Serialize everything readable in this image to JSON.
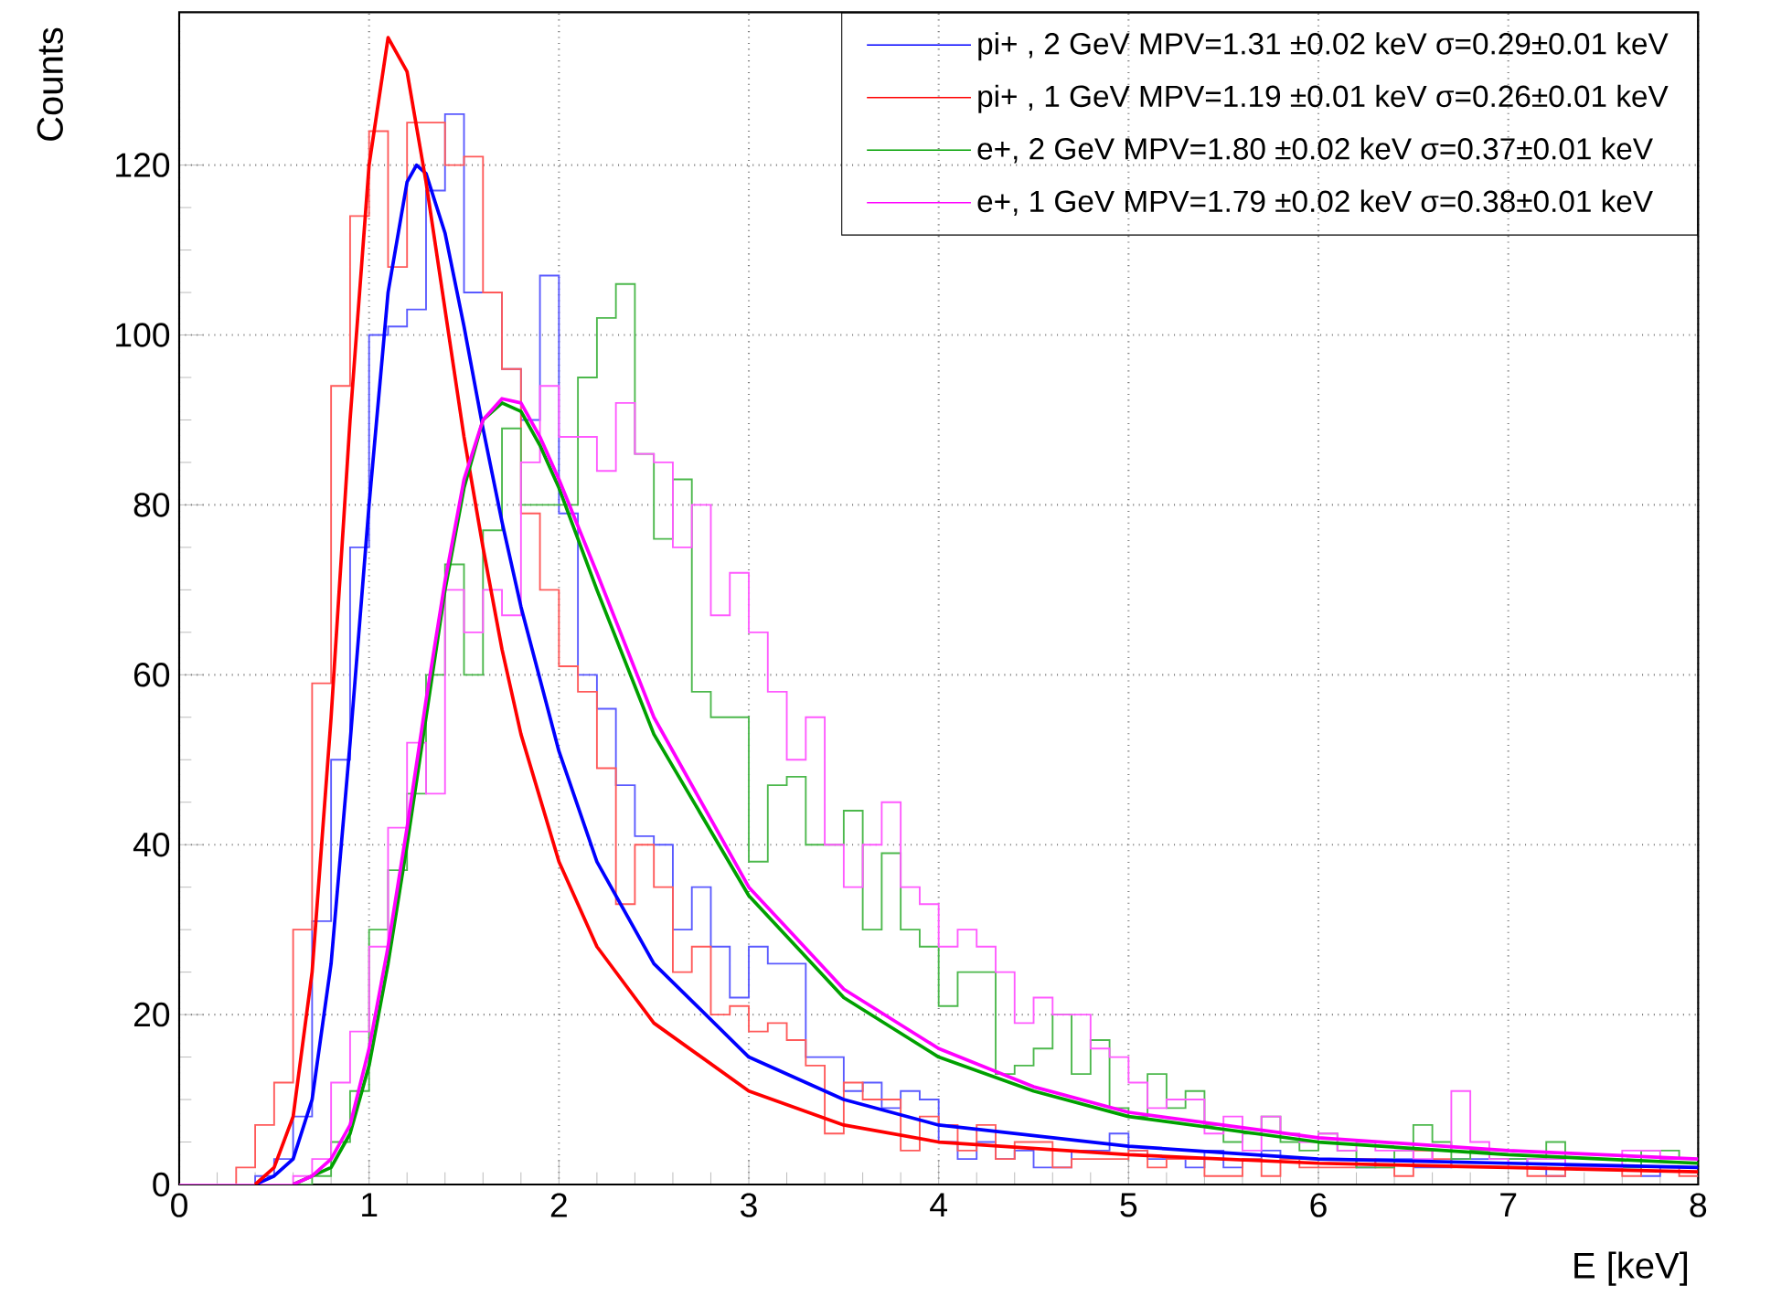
{
  "chart_data": {
    "type": "histogram",
    "xlabel": "E [keV]",
    "ylabel": "Counts",
    "xlim": [
      0,
      8
    ],
    "ylim": [
      0,
      138
    ],
    "xticks": [
      0,
      1,
      2,
      3,
      4,
      5,
      6,
      7,
      8
    ],
    "yticks": [
      0,
      20,
      40,
      60,
      80,
      100,
      120
    ],
    "grid": true,
    "legend": "top right",
    "bins": [
      0,
      0.1,
      0.2,
      0.3,
      0.4,
      0.5,
      0.6,
      0.7,
      0.8,
      0.9,
      1,
      1.1,
      1.2,
      1.3,
      1.4,
      1.5,
      1.6,
      1.7,
      1.8,
      1.9,
      2,
      2.1,
      2.2,
      2.3,
      2.4,
      2.5,
      2.6,
      2.7,
      2.8,
      2.9,
      3,
      3.1,
      3.2,
      3.3,
      3.4,
      3.5,
      3.6,
      3.7,
      3.8,
      3.9,
      4,
      4.1,
      4.2,
      4.3,
      4.4,
      4.5,
      4.6,
      4.7,
      4.8,
      4.9,
      5,
      5.1,
      5.2,
      5.3,
      5.4,
      5.5,
      5.6,
      5.7,
      5.8,
      5.9,
      6,
      6.1,
      6.2,
      6.3,
      6.4,
      6.5,
      6.6,
      6.7,
      6.8,
      6.9,
      7,
      7.1,
      7.2,
      7.3,
      7.4,
      7.5,
      7.6,
      7.7,
      7.8,
      7.9,
      8
    ],
    "series": [
      {
        "color": "#5a5aff",
        "values": [
          0,
          0,
          0,
          0,
          1,
          3,
          8,
          31,
          50,
          75,
          100,
          101,
          103,
          117,
          126,
          105,
          105,
          96,
          90,
          107,
          79,
          60,
          56,
          47,
          41,
          40,
          30,
          35,
          28,
          22,
          28,
          26,
          26,
          15,
          15,
          11,
          12,
          9,
          11,
          10,
          5,
          3,
          5,
          3,
          4,
          2,
          2,
          4,
          4,
          6,
          4,
          3,
          3,
          2,
          4,
          2,
          3,
          4,
          3,
          3,
          3,
          3,
          2,
          3,
          3,
          2,
          2,
          3,
          3,
          3,
          3,
          2,
          1,
          2,
          2,
          2,
          2,
          1,
          2,
          2
        ]
      },
      {
        "color": "#ff5a5a",
        "values": [
          0,
          0,
          0,
          2,
          7,
          12,
          30,
          59,
          94,
          114,
          124,
          108,
          125,
          125,
          120,
          121,
          105,
          96,
          79,
          70,
          61,
          58,
          49,
          33,
          40,
          35,
          25,
          28,
          20,
          21,
          18,
          19,
          17,
          14,
          6,
          12,
          10,
          10,
          4,
          8,
          7,
          4,
          7,
          3,
          5,
          5,
          2,
          3,
          3,
          3,
          4,
          2,
          3,
          3,
          1,
          1,
          3,
          1,
          3,
          2,
          2,
          2,
          3,
          2,
          1,
          4,
          3,
          2,
          2,
          2,
          2,
          1,
          1,
          2,
          2,
          2,
          1,
          2,
          2,
          1
        ]
      },
      {
        "color": "#4cb84c",
        "values": [
          0,
          0,
          0,
          0,
          0,
          0,
          0,
          1,
          5,
          11,
          30,
          37,
          46,
          60,
          73,
          60,
          77,
          89,
          80,
          80,
          80,
          95,
          102,
          106,
          86,
          76,
          83,
          58,
          55,
          55,
          38,
          47,
          48,
          40,
          40,
          44,
          30,
          39,
          30,
          28,
          21,
          25,
          25,
          13,
          14,
          16,
          20,
          13,
          17,
          9,
          8,
          13,
          9,
          11,
          7,
          5,
          6,
          8,
          5,
          4,
          6,
          4,
          2,
          2,
          4,
          7,
          5,
          3,
          4,
          3,
          3,
          3,
          5,
          2,
          2,
          2,
          2,
          4,
          4,
          3
        ]
      },
      {
        "color": "#ff5aff",
        "values": [
          0,
          0,
          0,
          0,
          0,
          0,
          1,
          3,
          12,
          18,
          28,
          42,
          52,
          46,
          70,
          65,
          70,
          67,
          85,
          94,
          88,
          88,
          84,
          92,
          86,
          85,
          75,
          80,
          67,
          72,
          65,
          58,
          50,
          55,
          40,
          35,
          40,
          45,
          35,
          33,
          28,
          30,
          28,
          25,
          19,
          22,
          20,
          20,
          16,
          15,
          12,
          9,
          10,
          10,
          6,
          8,
          4,
          8,
          6,
          5,
          6,
          4,
          5,
          4,
          4,
          3,
          4,
          11,
          5,
          3,
          2,
          3,
          3,
          2,
          2,
          2,
          4,
          4,
          3,
          3
        ]
      },
      {
        "type": "line",
        "name": "pi+ , 2 GeV MPV=1.31 ±0.02 keV σ=0.29±0.01 keV",
        "color": "#0000ff",
        "x": [
          0.4,
          0.5,
          0.6,
          0.7,
          0.8,
          0.9,
          1.0,
          1.1,
          1.2,
          1.25,
          1.3,
          1.4,
          1.5,
          1.6,
          1.7,
          1.8,
          2.0,
          2.2,
          2.5,
          3.0,
          3.5,
          4.0,
          5.0,
          6.0,
          7.0,
          8.0
        ],
        "values": [
          0,
          1,
          3,
          10,
          26,
          52,
          80,
          105,
          118,
          120,
          119,
          112,
          101,
          89,
          78,
          68,
          51,
          38,
          26,
          15,
          10,
          7,
          4.5,
          3,
          2.5,
          2
        ]
      },
      {
        "type": "line",
        "name": "pi+ , 1 GeV MPV=1.19  ±0.01 keV σ=0.26±0.01 keV",
        "color": "#ff0000",
        "x": [
          0.4,
          0.5,
          0.6,
          0.7,
          0.8,
          0.9,
          1.0,
          1.1,
          1.2,
          1.3,
          1.4,
          1.5,
          1.6,
          1.7,
          1.8,
          2.0,
          2.2,
          2.5,
          3.0,
          3.5,
          4.0,
          5.0,
          6.0,
          7.0,
          8.0
        ],
        "values": [
          0,
          2,
          8,
          25,
          55,
          90,
          120,
          135,
          131,
          118,
          103,
          88,
          75,
          63,
          53,
          38,
          28,
          19,
          11,
          7,
          5,
          3.5,
          2.5,
          2,
          1.5
        ]
      },
      {
        "type": "line",
        "name": "e+, 2 GeV MPV=1.80  ±0.02 keV σ=0.37±0.01 keV",
        "color": "#00a000",
        "x": [
          0.6,
          0.7,
          0.8,
          0.9,
          1.0,
          1.1,
          1.2,
          1.3,
          1.4,
          1.5,
          1.6,
          1.7,
          1.8,
          1.9,
          2.0,
          2.2,
          2.5,
          3.0,
          3.5,
          4.0,
          4.5,
          5.0,
          6.0,
          7.0,
          8.0
        ],
        "values": [
          0,
          1,
          2,
          6,
          14,
          26,
          40,
          55,
          70,
          82,
          90,
          92,
          91,
          87,
          82,
          70,
          53,
          34,
          22,
          15,
          11,
          8,
          5,
          3.5,
          2.5
        ]
      },
      {
        "type": "line",
        "name": "e+, 1 GeV MPV=1.79  ±0.02 keV σ=0.38±0.01 keV",
        "color": "#ff00ff",
        "x": [
          0.6,
          0.7,
          0.8,
          0.9,
          1.0,
          1.1,
          1.2,
          1.3,
          1.4,
          1.5,
          1.6,
          1.7,
          1.8,
          1.9,
          2.0,
          2.2,
          2.5,
          3.0,
          3.5,
          4.0,
          4.5,
          5.0,
          6.0,
          7.0,
          8.0
        ],
        "values": [
          0,
          1,
          3,
          7,
          16,
          28,
          42,
          57,
          71,
          83,
          90,
          92.5,
          92,
          88,
          83,
          72,
          55,
          35,
          23,
          16,
          11.5,
          8.5,
          5.5,
          4,
          3
        ]
      }
    ]
  }
}
